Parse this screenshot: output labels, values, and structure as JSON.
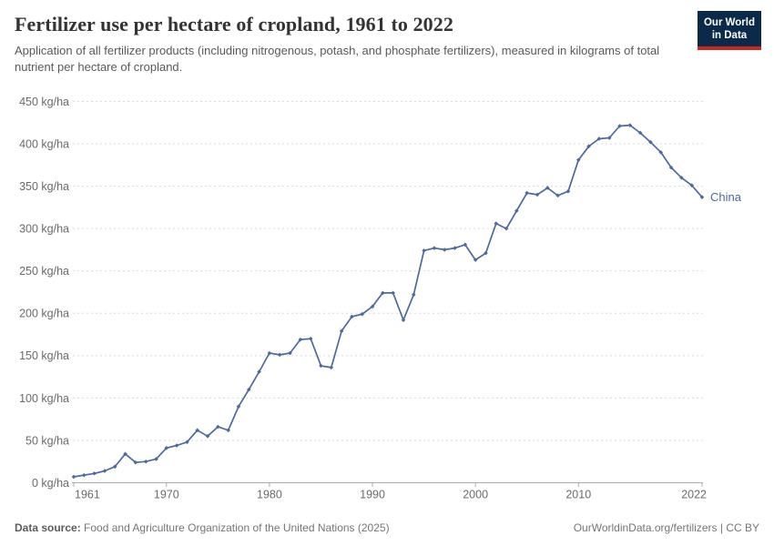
{
  "header": {
    "title": "Fertilizer use per hectare of cropland, 1961 to 2022",
    "subtitle": "Application of all fertilizer products (including nitrogenous, potash, and phosphate fertilizers), measured in kilograms of total nutrient per hectare of cropland.",
    "logo": {
      "line1": "Our World",
      "line2": "in Data",
      "bg_color": "#0b2948",
      "accent_color": "#ce261d"
    }
  },
  "chart_data": {
    "type": "line",
    "title": "Fertilizer use per hectare of cropland, 1961 to 2022",
    "xlabel": "",
    "ylabel": "kg/ha",
    "ylim": [
      0,
      450
    ],
    "ytick_interval": 50,
    "ytick_labels": [
      "0 kg/ha",
      "50 kg/ha",
      "100 kg/ha",
      "150 kg/ha",
      "200 kg/ha",
      "250 kg/ha",
      "300 kg/ha",
      "350 kg/ha",
      "400 kg/ha",
      "450 kg/ha"
    ],
    "xticks": [
      1961,
      1970,
      1980,
      1990,
      2000,
      2010,
      2022
    ],
    "grid": "horizontal-dashed",
    "legend_position": "end-of-line-label",
    "colors": {
      "gridline": "#d9d9d9",
      "axis": "#ababab",
      "tick_label": "#6b6b6b"
    },
    "series": [
      {
        "name": "China",
        "color": "#4c6a9e",
        "x": [
          1961,
          1962,
          1963,
          1964,
          1965,
          1966,
          1967,
          1968,
          1969,
          1970,
          1971,
          1972,
          1973,
          1974,
          1975,
          1976,
          1977,
          1978,
          1979,
          1980,
          1981,
          1982,
          1983,
          1984,
          1985,
          1986,
          1987,
          1988,
          1989,
          1990,
          1991,
          1992,
          1993,
          1994,
          1995,
          1996,
          1997,
          1998,
          1999,
          2000,
          2001,
          2002,
          2003,
          2004,
          2005,
          2006,
          2007,
          2008,
          2009,
          2010,
          2011,
          2012,
          2013,
          2014,
          2015,
          2016,
          2017,
          2018,
          2019,
          2020,
          2021,
          2022
        ],
        "values": [
          7,
          9,
          11,
          14,
          19,
          34,
          24,
          25,
          28,
          41,
          44,
          48,
          62,
          55,
          66,
          62,
          90,
          110,
          131,
          153,
          151,
          153,
          169,
          170,
          138,
          136,
          179,
          196,
          199,
          208,
          224,
          224,
          192,
          222,
          274,
          277,
          275,
          277,
          281,
          263,
          271,
          306,
          300,
          321,
          342,
          340,
          348,
          339,
          344,
          381,
          397,
          406,
          407,
          421,
          422,
          413,
          402,
          390,
          372,
          360,
          351,
          337
        ]
      }
    ]
  },
  "footer": {
    "datasource_label": "Data source:",
    "datasource_text": " Food and Agriculture Organization of the United Nations (2025)",
    "credit": "OurWorldinData.org/fertilizers | CC BY"
  }
}
